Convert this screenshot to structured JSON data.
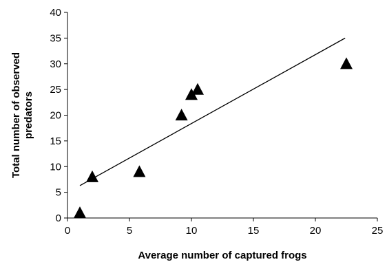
{
  "chart_data": {
    "type": "scatter",
    "title": "",
    "xlabel": "Average number of captured frogs",
    "ylabel": "Total number of observed predators",
    "xlim": [
      0,
      25
    ],
    "ylim": [
      0,
      40
    ],
    "x_ticks": [
      0,
      5,
      10,
      15,
      20,
      25
    ],
    "y_ticks": [
      0,
      5,
      10,
      15,
      20,
      25,
      30,
      35,
      40
    ],
    "grid": false,
    "legend": "none",
    "marker": "triangle",
    "marker_color": "#000000",
    "points": [
      {
        "x": 1.0,
        "y": 1
      },
      {
        "x": 2.0,
        "y": 8
      },
      {
        "x": 5.8,
        "y": 9
      },
      {
        "x": 9.2,
        "y": 20
      },
      {
        "x": 10.0,
        "y": 24
      },
      {
        "x": 10.5,
        "y": 25
      },
      {
        "x": 22.5,
        "y": 30
      }
    ],
    "trendline": {
      "type": "linear",
      "x": [
        1.0,
        22.4
      ],
      "y": [
        6.3,
        35.0
      ]
    }
  }
}
